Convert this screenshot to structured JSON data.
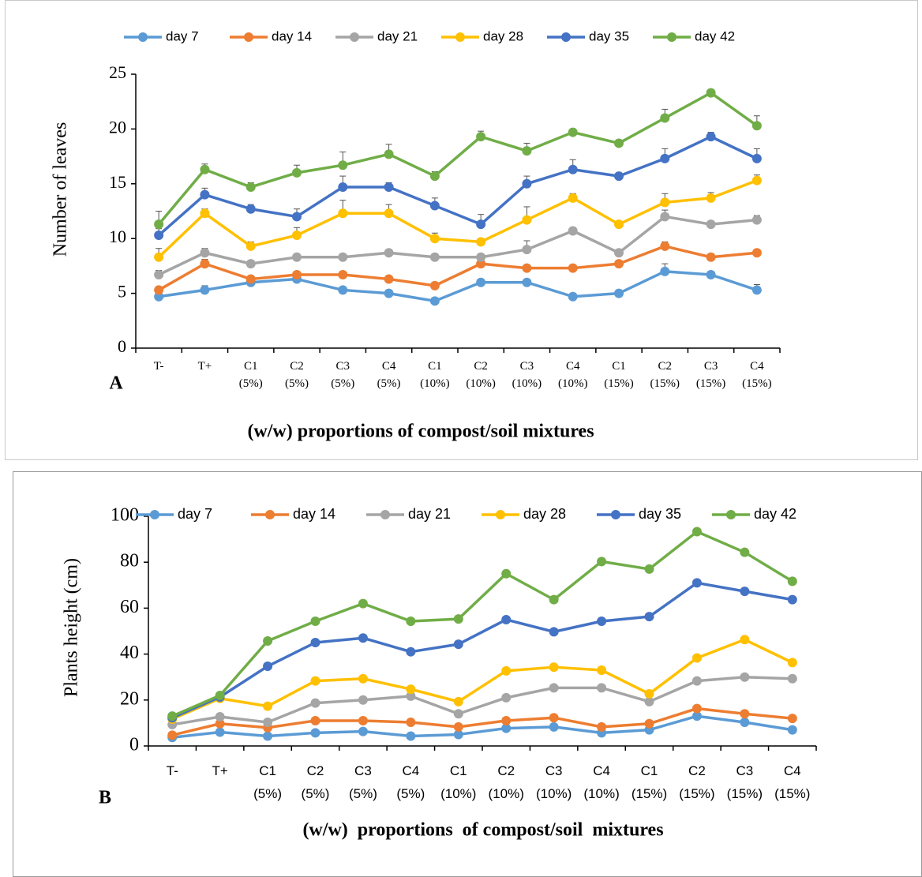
{
  "chart_data": [
    {
      "type": "line",
      "panel_label": "A",
      "y_label": "Number of leaves",
      "x_label": "(w/w) proportions of compost/soil mixtures",
      "categories": [
        [
          "T-"
        ],
        [
          "T+"
        ],
        [
          "C1",
          "(5%)"
        ],
        [
          "C2",
          "(5%)"
        ],
        [
          "C3",
          "(5%)"
        ],
        [
          "C4",
          "(5%)"
        ],
        [
          "C1",
          "(10%)"
        ],
        [
          "C2",
          "(10%)"
        ],
        [
          "C3",
          "(10%)"
        ],
        [
          "C4",
          "(10%)"
        ],
        [
          "C1",
          "(15%)"
        ],
        [
          "C2",
          "(15%)"
        ],
        [
          "C3",
          "(15%)"
        ],
        [
          "C4",
          "(15%)"
        ]
      ],
      "ylim": [
        0,
        25
      ],
      "yticks": [
        0,
        5,
        10,
        15,
        20,
        25
      ],
      "legend": "top",
      "series": [
        {
          "name": "day 7",
          "color": "#5b9bd5",
          "values": [
            4.7,
            5.3,
            6.0,
            6.3,
            5.3,
            5.0,
            4.3,
            6.0,
            6.0,
            4.7,
            5.0,
            7.0,
            6.7,
            5.3
          ],
          "errors": [
            0.3,
            0.4,
            0.3,
            0.3,
            0.3,
            0.3,
            0.3,
            0.3,
            0.3,
            0.3,
            0.3,
            0.7,
            0.3,
            0.5
          ]
        },
        {
          "name": "day 14",
          "color": "#ed7d31",
          "values": [
            5.3,
            7.7,
            6.3,
            6.7,
            6.7,
            6.3,
            5.7,
            7.7,
            7.3,
            7.3,
            7.7,
            9.3,
            8.3,
            8.7
          ],
          "errors": [
            0.3,
            0.4,
            0.3,
            0.3,
            0.3,
            0.3,
            0.3,
            0.3,
            0.3,
            0.3,
            0.3,
            0.4,
            0.3,
            0.3
          ]
        },
        {
          "name": "day 21",
          "color": "#a5a5a5",
          "values": [
            6.7,
            8.7,
            7.7,
            8.3,
            8.3,
            8.7,
            8.3,
            8.3,
            9.0,
            10.7,
            8.7,
            12.0,
            11.3,
            11.7
          ],
          "errors": [
            0.4,
            0.4,
            0.3,
            0.3,
            0.3,
            0.3,
            0.3,
            0.3,
            0.8,
            0.3,
            0.3,
            0.6,
            0.3,
            0.4
          ]
        },
        {
          "name": "day 28",
          "color": "#ffc000",
          "values": [
            8.3,
            12.3,
            9.3,
            10.3,
            12.3,
            12.3,
            10.0,
            9.7,
            11.7,
            13.7,
            11.3,
            13.3,
            13.7,
            15.3
          ],
          "errors": [
            0.8,
            0.4,
            0.4,
            0.7,
            1.2,
            0.8,
            0.5,
            0.3,
            1.2,
            0.4,
            0.3,
            0.8,
            0.5,
            0.5
          ]
        },
        {
          "name": "day 35",
          "color": "#4472c4",
          "values": [
            10.3,
            14.0,
            12.7,
            12.0,
            14.7,
            14.7,
            13.0,
            11.3,
            15.0,
            16.3,
            15.7,
            17.3,
            19.3,
            17.3
          ],
          "errors": [
            0.6,
            0.6,
            0.4,
            0.7,
            1.0,
            0.4,
            0.7,
            0.9,
            0.7,
            0.9,
            0.3,
            0.9,
            0.4,
            0.9
          ]
        },
        {
          "name": "day 42",
          "color": "#70ad47",
          "values": [
            11.3,
            16.3,
            14.7,
            16.0,
            16.7,
            17.7,
            15.7,
            19.3,
            18.0,
            19.7,
            18.7,
            21.0,
            23.3,
            20.3
          ],
          "errors": [
            1.2,
            0.5,
            0.4,
            0.7,
            1.2,
            0.9,
            0.4,
            0.5,
            0.7,
            0.3,
            0.3,
            0.8,
            0.3,
            0.9
          ]
        }
      ]
    },
    {
      "type": "line",
      "panel_label": "B",
      "y_label": "Plants height  (cm)",
      "x_label": "(w/w)  proportions  of compost/soil  mixtures",
      "categories": [
        [
          "T-"
        ],
        [
          "T+"
        ],
        [
          "C1",
          "(5%)"
        ],
        [
          "C2",
          "(5%)"
        ],
        [
          "C3",
          "(5%)"
        ],
        [
          "C4",
          "(5%)"
        ],
        [
          "C1",
          "(10%)"
        ],
        [
          "C2",
          "(10%)"
        ],
        [
          "C3",
          "(10%)"
        ],
        [
          "C4",
          "(10%)"
        ],
        [
          "C1",
          "(15%)"
        ],
        [
          "C2",
          "(15%)"
        ],
        [
          "C3",
          "(15%)"
        ],
        [
          "C4",
          "(15%)"
        ]
      ],
      "ylim": [
        0,
        100
      ],
      "yticks": [
        0,
        20,
        40,
        60,
        80,
        100
      ],
      "legend": "top",
      "series": [
        {
          "name": "day 7",
          "color": "#5b9bd5",
          "values": [
            3.7,
            6,
            4.3,
            5.7,
            6.3,
            4.3,
            5,
            7.7,
            8.3,
            5.7,
            7,
            13,
            10.3,
            7
          ]
        },
        {
          "name": "day 14",
          "color": "#ed7d31",
          "values": [
            4.7,
            9.7,
            8,
            11,
            11,
            10.3,
            8.3,
            11,
            12.3,
            8.3,
            9.7,
            16.3,
            14,
            12
          ]
        },
        {
          "name": "day 21",
          "color": "#a5a5a5",
          "values": [
            9.3,
            12.7,
            10.3,
            18.7,
            20,
            21.7,
            14,
            21,
            25.3,
            25.3,
            19.3,
            28.3,
            30,
            29.3
          ]
        },
        {
          "name": "day 28",
          "color": "#ffc000",
          "values": [
            11.7,
            20.7,
            17.3,
            28.3,
            29.3,
            24.7,
            19.3,
            32.7,
            34.3,
            33,
            22.7,
            38.3,
            46.3,
            36.3
          ]
        },
        {
          "name": "day 35",
          "color": "#4472c4",
          "values": [
            12.3,
            21.3,
            34.7,
            45,
            47,
            41,
            44.3,
            55,
            49.7,
            54.3,
            56.3,
            71,
            67.3,
            63.7
          ]
        },
        {
          "name": "day 42",
          "color": "#70ad47",
          "values": [
            13,
            22,
            45.7,
            54.3,
            62,
            54.3,
            55.3,
            75,
            63.7,
            80.3,
            77,
            93.3,
            84.3,
            71.7
          ]
        }
      ]
    }
  ]
}
